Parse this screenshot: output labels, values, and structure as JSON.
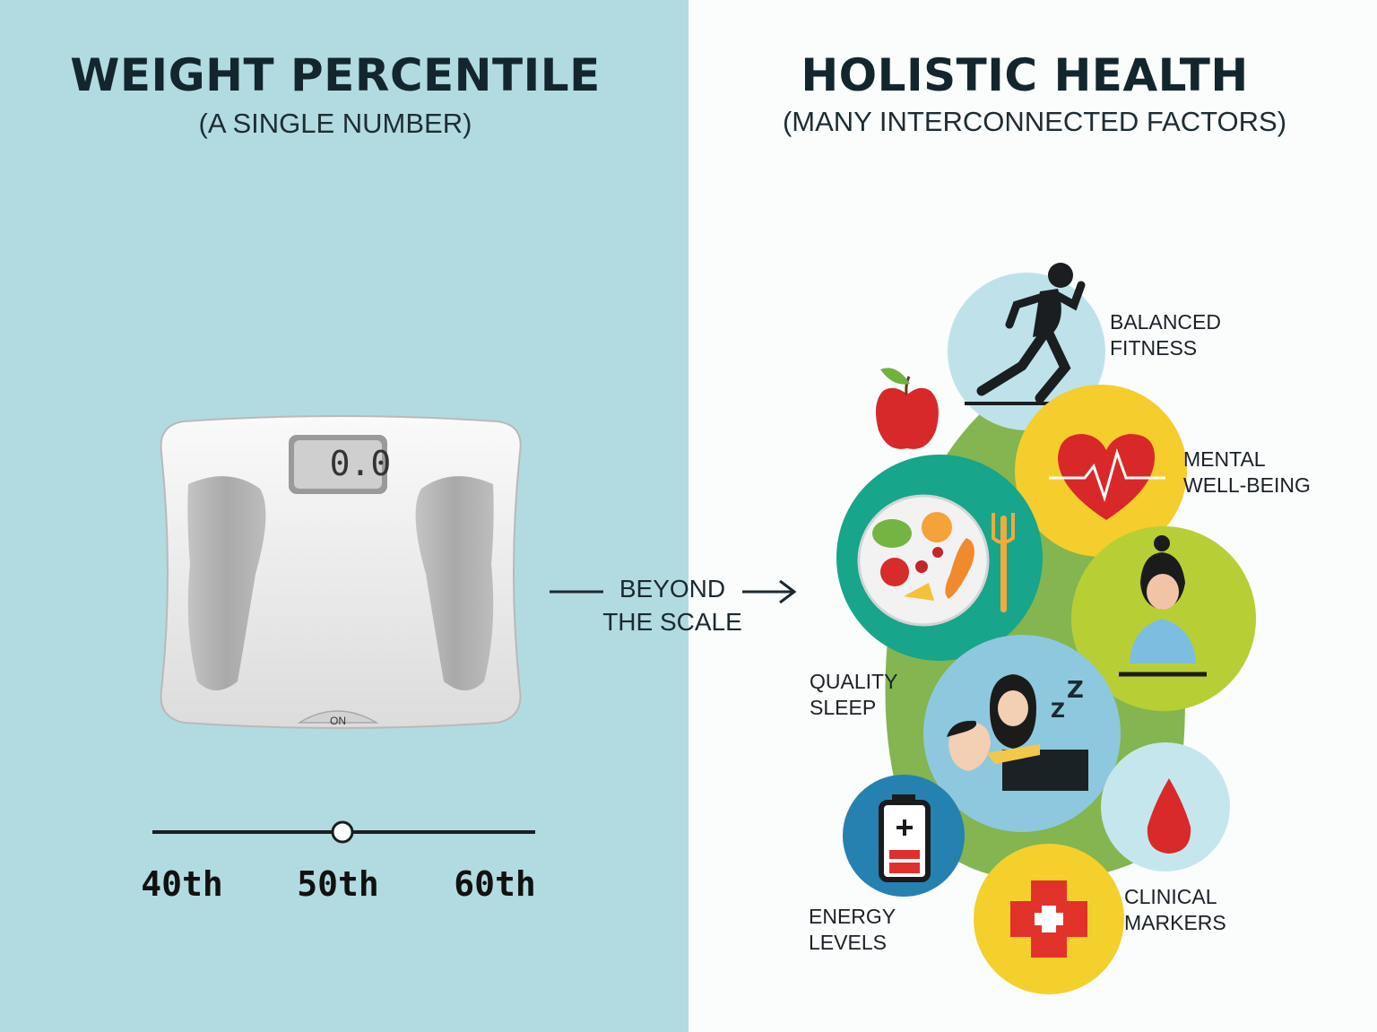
{
  "left": {
    "title": "WEIGHT PERCENTILE",
    "subtitle": "(A SINGLE NUMBER)",
    "scale": {
      "display": "0.0",
      "button_label": "ON"
    },
    "slider": {
      "ticks": [
        "40th",
        "50th",
        "60th"
      ],
      "marker_value": "50th"
    }
  },
  "bridge": {
    "line1": "BEYOND",
    "line2": "THE SCALE"
  },
  "right": {
    "title": "HOLISTIC HEALTH",
    "subtitle": "(MANY INTERCONNECTED FACTORS)",
    "factors": [
      {
        "name": "fitness",
        "line1": "BALANCED",
        "line2": "FITNESS",
        "icon": "running-person-icon",
        "color": "#bfe2ea"
      },
      {
        "name": "mental",
        "line1": "MENTAL",
        "line2": "WELL-BEING",
        "icon": "heartbeat-heart-icon",
        "color": "#f5cd2c"
      },
      {
        "name": "sleep",
        "line1": "QUALITY",
        "line2": "SLEEP",
        "icon": "sleeping-person-icon",
        "color": "#8ec8de"
      },
      {
        "name": "energy",
        "line1": "ENERGY",
        "line2": "LEVELS",
        "icon": "battery-icon",
        "color": "#2581b0"
      },
      {
        "name": "clinical",
        "line1": "CLINICAL",
        "line2": "MARKERS",
        "icon": "medical-cross-icon",
        "color": "#f4d02d"
      }
    ],
    "extra_icons": [
      "apple-icon",
      "nutrition-plate-icon",
      "meditation-person-icon",
      "blood-drop-icon"
    ]
  }
}
